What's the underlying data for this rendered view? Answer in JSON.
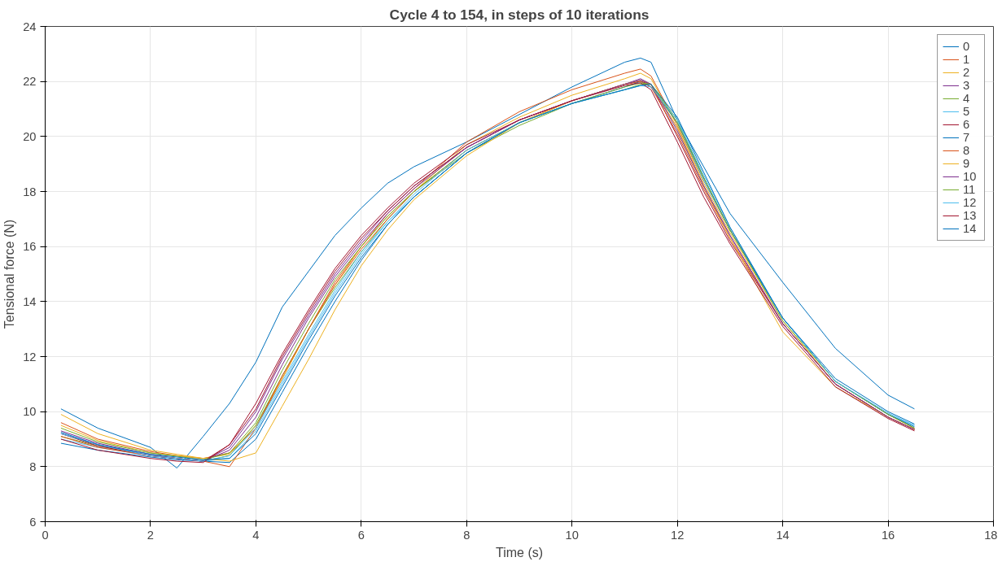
{
  "chart_data": {
    "type": "line",
    "title": "Cycle 4 to 154, in steps of 10 iterations",
    "xlabel": "Time (s)",
    "ylabel": "Tensional force (N)",
    "x": [
      0.3,
      1,
      2,
      2.5,
      3,
      3.5,
      4,
      4.5,
      5,
      5.5,
      6,
      6.5,
      7,
      8,
      9,
      10,
      11,
      11.3,
      11.5,
      12,
      12.5,
      13,
      14,
      15,
      16,
      16.5
    ],
    "xlim": [
      0,
      18
    ],
    "xticks": [
      0,
      2,
      4,
      6,
      8,
      10,
      12,
      14,
      16,
      18
    ],
    "ylim": [
      6,
      24
    ],
    "yticks": [
      6,
      8,
      10,
      12,
      14,
      16,
      18,
      20,
      22,
      24
    ],
    "grid": true,
    "legend": "top right",
    "line_style": "solid",
    "marker": "none",
    "series": [
      {
        "name": "0",
        "color": "#0072bd",
        "values": [
          10.1,
          9.4,
          8.7,
          7.95,
          9.1,
          10.3,
          11.8,
          13.8,
          15.1,
          16.4,
          17.4,
          18.3,
          18.9,
          19.8,
          20.8,
          21.8,
          22.7,
          22.85,
          22.7,
          20.6,
          18.9,
          17.2,
          14.7,
          12.3,
          10.6,
          10.1
        ]
      },
      {
        "name": "1",
        "color": "#d95319",
        "values": [
          9.6,
          9.0,
          8.55,
          8.4,
          8.3,
          8.5,
          9.4,
          11.2,
          13.0,
          14.7,
          16.0,
          17.2,
          18.1,
          19.8,
          20.9,
          21.7,
          22.3,
          22.45,
          22.2,
          20.4,
          18.4,
          16.6,
          13.4,
          11.1,
          9.9,
          9.4
        ]
      },
      {
        "name": "2",
        "color": "#edb120",
        "values": [
          9.9,
          9.2,
          8.6,
          8.45,
          8.3,
          8.45,
          9.5,
          11.2,
          13.0,
          14.6,
          16.0,
          17.1,
          18.0,
          19.7,
          20.7,
          21.5,
          22.1,
          22.3,
          22.1,
          20.4,
          18.3,
          16.5,
          13.3,
          11.0,
          9.8,
          9.35
        ]
      },
      {
        "name": "3",
        "color": "#7e2f8e",
        "values": [
          9.3,
          8.85,
          8.45,
          8.3,
          8.2,
          8.7,
          10.0,
          11.9,
          13.5,
          15.0,
          16.2,
          17.3,
          18.2,
          19.6,
          20.6,
          21.3,
          21.9,
          22.1,
          21.9,
          20.3,
          18.2,
          16.4,
          13.2,
          11.0,
          9.8,
          9.35
        ]
      },
      {
        "name": "4",
        "color": "#77ac30",
        "values": [
          9.1,
          8.75,
          8.4,
          8.3,
          8.2,
          8.4,
          9.5,
          11.3,
          13.0,
          14.5,
          15.8,
          17.0,
          18.0,
          19.4,
          20.4,
          21.2,
          21.7,
          21.9,
          21.9,
          20.6,
          18.5,
          16.6,
          13.4,
          11.1,
          9.9,
          9.4
        ]
      },
      {
        "name": "5",
        "color": "#4dbeee",
        "values": [
          9.0,
          8.7,
          8.4,
          8.3,
          8.2,
          8.3,
          9.3,
          11.0,
          12.7,
          14.3,
          15.7,
          16.9,
          17.8,
          19.4,
          20.5,
          21.2,
          21.7,
          21.85,
          21.9,
          20.5,
          18.4,
          16.6,
          13.4,
          11.1,
          9.9,
          9.5
        ]
      },
      {
        "name": "6",
        "color": "#a2142f",
        "values": [
          9.2,
          8.75,
          8.4,
          8.3,
          8.2,
          8.8,
          10.1,
          12.0,
          13.6,
          15.1,
          16.3,
          17.3,
          18.2,
          19.6,
          20.6,
          21.3,
          21.9,
          22.0,
          21.9,
          20.0,
          18.0,
          16.2,
          13.2,
          11.0,
          9.8,
          9.35
        ]
      },
      {
        "name": "7",
        "color": "#0072bd",
        "values": [
          8.85,
          8.6,
          8.35,
          8.25,
          8.2,
          8.15,
          9.0,
          10.7,
          12.4,
          14.0,
          15.5,
          16.8,
          17.8,
          19.4,
          20.5,
          21.2,
          21.8,
          22.0,
          21.8,
          20.5,
          18.5,
          16.6,
          13.4,
          11.1,
          9.9,
          9.45
        ]
      },
      {
        "name": "8",
        "color": "#d95319",
        "values": [
          9.1,
          8.7,
          8.4,
          8.3,
          8.2,
          8.0,
          9.4,
          11.3,
          13.0,
          14.6,
          15.9,
          17.0,
          18.0,
          19.5,
          20.5,
          21.3,
          21.9,
          22.0,
          21.8,
          20.1,
          18.1,
          16.3,
          13.2,
          11.0,
          9.8,
          9.35
        ]
      },
      {
        "name": "9",
        "color": "#edb120",
        "values": [
          9.5,
          8.95,
          8.5,
          8.4,
          8.3,
          8.2,
          8.5,
          10.2,
          11.9,
          13.7,
          15.3,
          16.6,
          17.7,
          19.3,
          20.5,
          21.3,
          21.9,
          22.05,
          21.9,
          20.3,
          18.2,
          16.3,
          12.9,
          10.9,
          9.8,
          9.35
        ]
      },
      {
        "name": "10",
        "color": "#7e2f8e",
        "values": [
          9.2,
          8.8,
          8.4,
          8.3,
          8.2,
          8.6,
          9.8,
          11.7,
          13.4,
          14.9,
          16.1,
          17.2,
          18.1,
          19.6,
          20.6,
          21.3,
          21.9,
          22.05,
          21.9,
          20.2,
          18.2,
          16.4,
          13.2,
          11.0,
          9.8,
          9.35
        ]
      },
      {
        "name": "11",
        "color": "#77ac30",
        "values": [
          9.4,
          8.9,
          8.5,
          8.38,
          8.25,
          8.5,
          9.6,
          11.5,
          13.2,
          14.8,
          16.0,
          17.1,
          18.0,
          19.5,
          20.5,
          21.2,
          21.8,
          21.95,
          21.9,
          20.5,
          18.5,
          16.6,
          13.3,
          11.1,
          9.9,
          9.4
        ]
      },
      {
        "name": "12",
        "color": "#4dbeee",
        "values": [
          9.2,
          8.8,
          8.4,
          8.3,
          8.2,
          8.4,
          9.4,
          11.1,
          12.8,
          14.4,
          15.8,
          16.9,
          17.9,
          19.5,
          20.5,
          21.2,
          21.7,
          21.85,
          21.8,
          20.6,
          18.6,
          16.7,
          13.4,
          11.1,
          9.95,
          9.5
        ]
      },
      {
        "name": "13",
        "color": "#a2142f",
        "values": [
          9.0,
          8.6,
          8.3,
          8.2,
          8.15,
          8.8,
          10.3,
          12.1,
          13.7,
          15.2,
          16.4,
          17.4,
          18.3,
          19.7,
          20.6,
          21.3,
          21.85,
          21.95,
          21.7,
          19.8,
          17.8,
          16.1,
          13.1,
          10.9,
          9.75,
          9.3
        ]
      },
      {
        "name": "14",
        "color": "#0072bd",
        "values": [
          9.25,
          8.8,
          8.45,
          8.35,
          8.25,
          8.3,
          9.2,
          10.9,
          12.6,
          14.2,
          15.6,
          16.8,
          17.8,
          19.4,
          20.5,
          21.2,
          21.7,
          21.85,
          21.9,
          20.7,
          18.7,
          16.7,
          13.4,
          11.2,
          10.0,
          9.55
        ]
      }
    ]
  }
}
